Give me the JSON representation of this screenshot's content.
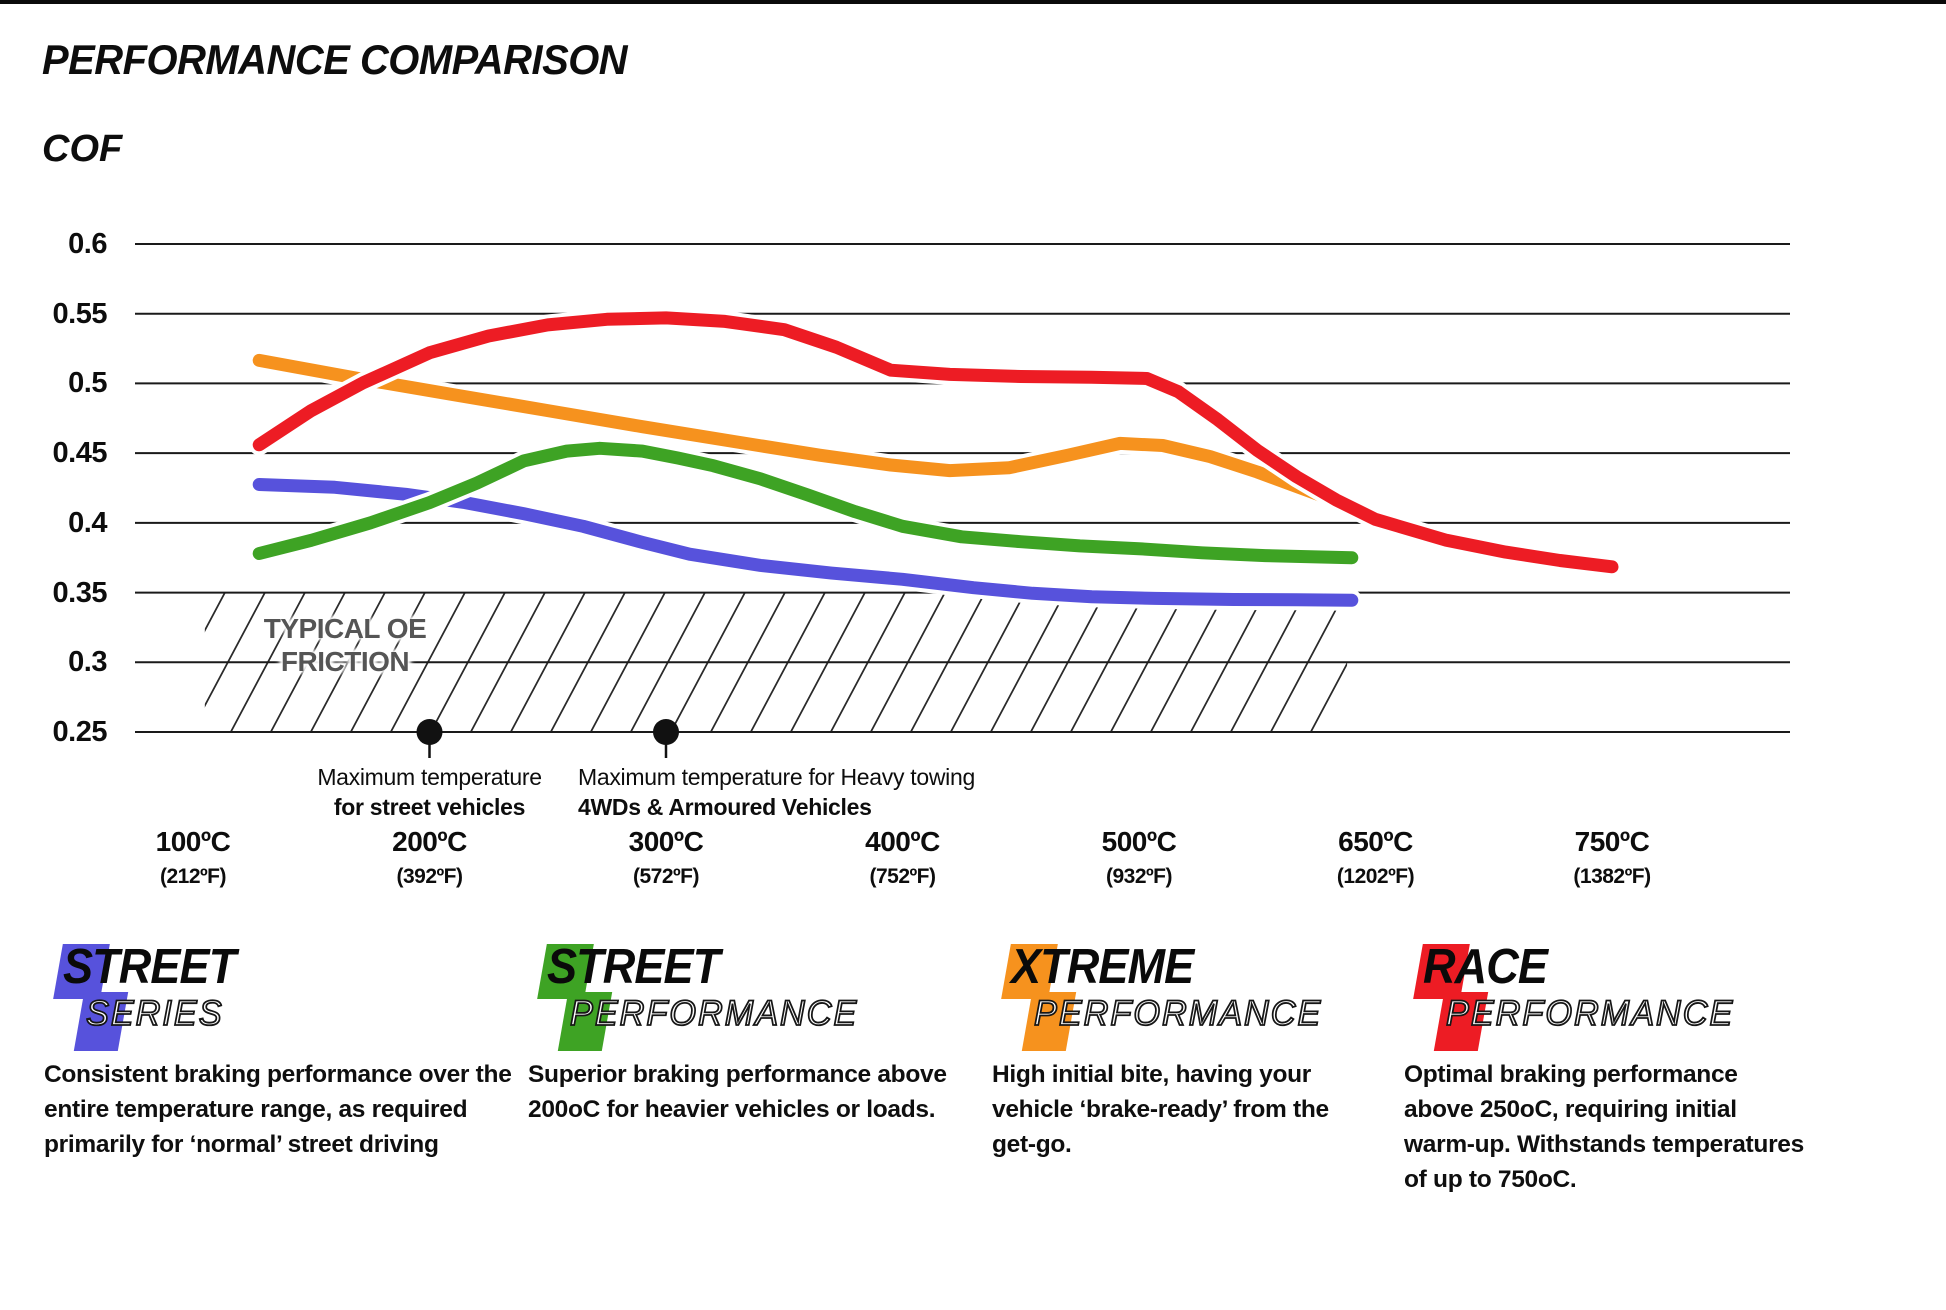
{
  "title": "PERFORMANCE COMPARISON",
  "y_axis_title": "COF",
  "colors": {
    "red": "#ED1C24",
    "orange": "#F6921E",
    "green": "#3EA324",
    "blue": "#5752DC",
    "grid": "#1a1a1a",
    "hatch": "#2b2b2b",
    "dot": "#111111",
    "oe_text": "#555555"
  },
  "chart_data": {
    "type": "line",
    "title": "PERFORMANCE COMPARISON",
    "ylabel": "COF",
    "ylim": [
      0.25,
      0.6
    ],
    "grid": "horizontal",
    "legend_position": "bottom",
    "y_ticks": [
      {
        "label": "0.6",
        "value": 0.6
      },
      {
        "label": "0.55",
        "value": 0.55
      },
      {
        "label": "0.5",
        "value": 0.5
      },
      {
        "label": "0.45",
        "value": 0.45
      },
      {
        "label": "0.4",
        "value": 0.4
      },
      {
        "label": "0.35",
        "value": 0.35
      },
      {
        "label": "0.3",
        "value": 0.3
      },
      {
        "label": "0.25",
        "value": 0.25
      }
    ],
    "x_ticks": [
      {
        "temp": 100,
        "label_c": "100ºC",
        "label_f": "(212ºF)"
      },
      {
        "temp": 200,
        "label_c": "200ºC",
        "label_f": "(392ºF)"
      },
      {
        "temp": 300,
        "label_c": "300ºC",
        "label_f": "(572ºF)"
      },
      {
        "temp": 400,
        "label_c": "400ºC",
        "label_f": "(752ºF)"
      },
      {
        "temp": 500,
        "label_c": "500ºC",
        "label_f": "(932ºF)"
      },
      {
        "temp": 650,
        "label_c": "650ºC",
        "label_f": "(1202ºF)"
      },
      {
        "temp": 750,
        "label_c": "750ºC",
        "label_f": "(1382ºF)"
      }
    ],
    "oe_zone": {
      "label_line1": "TYPICAL OE",
      "label_line2": "FRICTION",
      "cof_from": 0.25,
      "cof_to": 0.35,
      "temp_from": 105,
      "temp_to": 632
    },
    "annotations": [
      {
        "temp": 200,
        "cof": 0.25,
        "align": "center",
        "line1": "Maximum temperature",
        "line2": "for street vehicles"
      },
      {
        "temp": 300,
        "cof": 0.25,
        "align": "left",
        "line1": "Maximum temperature for Heavy towing",
        "line2": "4WDs & Armoured Vehicles"
      }
    ],
    "series": [
      {
        "name": "Street Series",
        "color": "blue",
        "points": [
          [
            128,
            0.4275
          ],
          [
            160,
            0.4255
          ],
          [
            190,
            0.4205
          ],
          [
            215,
            0.4145
          ],
          [
            240,
            0.4065
          ],
          [
            265,
            0.3975
          ],
          [
            290,
            0.386
          ],
          [
            310,
            0.3775
          ],
          [
            340,
            0.3695
          ],
          [
            370,
            0.364
          ],
          [
            400,
            0.3595
          ],
          [
            430,
            0.3535
          ],
          [
            455,
            0.3495
          ],
          [
            480,
            0.347
          ],
          [
            510,
            0.3458
          ],
          [
            560,
            0.345
          ],
          [
            600,
            0.3448
          ],
          [
            635,
            0.3445
          ]
        ]
      },
      {
        "name": "Street Performance",
        "color": "green",
        "points": [
          [
            128,
            0.378
          ],
          [
            150,
            0.3875
          ],
          [
            175,
            0.4
          ],
          [
            200,
            0.4145
          ],
          [
            220,
            0.4285
          ],
          [
            240,
            0.4445
          ],
          [
            258,
            0.4515
          ],
          [
            272,
            0.4535
          ],
          [
            290,
            0.4515
          ],
          [
            305,
            0.4465
          ],
          [
            320,
            0.441
          ],
          [
            340,
            0.4315
          ],
          [
            360,
            0.42
          ],
          [
            380,
            0.408
          ],
          [
            400,
            0.3975
          ],
          [
            425,
            0.39
          ],
          [
            450,
            0.3865
          ],
          [
            475,
            0.3835
          ],
          [
            500,
            0.3815
          ],
          [
            540,
            0.3785
          ],
          [
            580,
            0.3765
          ],
          [
            635,
            0.375
          ]
        ]
      },
      {
        "name": "Xtreme Performance",
        "color": "orange",
        "points": [
          [
            128,
            0.5165
          ],
          [
            170,
            0.5035
          ],
          [
            210,
            0.492
          ],
          [
            250,
            0.4805
          ],
          [
            290,
            0.469
          ],
          [
            330,
            0.458
          ],
          [
            365,
            0.4485
          ],
          [
            395,
            0.4415
          ],
          [
            420,
            0.4375
          ],
          [
            445,
            0.4395
          ],
          [
            470,
            0.4485
          ],
          [
            492,
            0.457
          ],
          [
            515,
            0.4555
          ],
          [
            545,
            0.4475
          ],
          [
            575,
            0.4365
          ],
          [
            605,
            0.424
          ],
          [
            640,
            0.4095
          ]
        ]
      },
      {
        "name": "Race Performance",
        "color": "red",
        "points": [
          [
            128,
            0.456
          ],
          [
            150,
            0.4805
          ],
          [
            172,
            0.5005
          ],
          [
            200,
            0.522
          ],
          [
            225,
            0.534
          ],
          [
            250,
            0.542
          ],
          [
            275,
            0.546
          ],
          [
            300,
            0.547
          ],
          [
            325,
            0.5445
          ],
          [
            350,
            0.5385
          ],
          [
            372,
            0.526
          ],
          [
            395,
            0.5095
          ],
          [
            420,
            0.5065
          ],
          [
            450,
            0.505
          ],
          [
            480,
            0.5045
          ],
          [
            505,
            0.5035
          ],
          [
            525,
            0.494
          ],
          [
            550,
            0.474
          ],
          [
            575,
            0.452
          ],
          [
            600,
            0.433
          ],
          [
            625,
            0.4165
          ],
          [
            650,
            0.4025
          ],
          [
            680,
            0.3875
          ],
          [
            705,
            0.379
          ],
          [
            728,
            0.373
          ],
          [
            750,
            0.3685
          ]
        ]
      }
    ]
  },
  "legend": [
    {
      "word1": "STREET",
      "word2": "SERIES",
      "color_key": "blue",
      "description": "Consistent braking performance over the entire temperature range, as required primarily for ‘normal’ street driving"
    },
    {
      "word1": "STREET",
      "word2": "PERFORMANCE",
      "color_key": "green",
      "description": "Superior braking performance above 200oC for heavier vehicles or loads."
    },
    {
      "word1": "XTREME",
      "word2": "PERFORMANCE",
      "color_key": "orange",
      "description": "High initial bite, having your vehicle ‘brake-ready’ from the get-go."
    },
    {
      "word1": "RACE",
      "word2": "PERFORMANCE",
      "color_key": "red",
      "description": "Optimal braking performance above 250oC, requiring initial warm-up. Withstands temperatures of up to 750oC."
    }
  ]
}
